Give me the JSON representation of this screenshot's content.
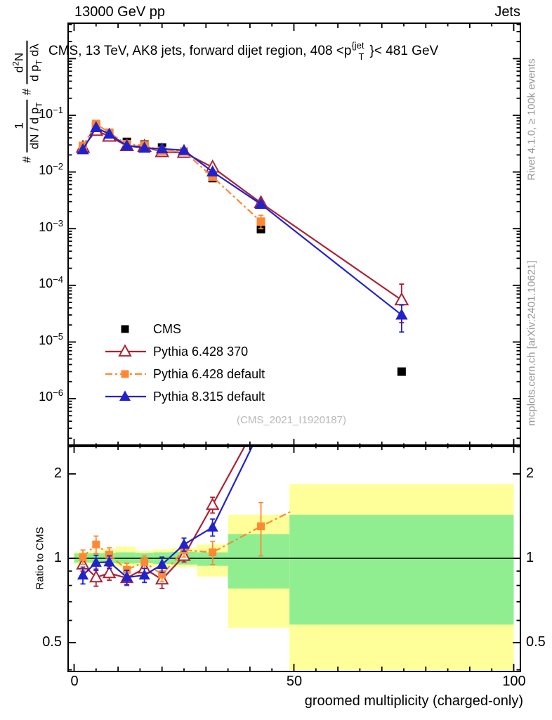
{
  "header": {
    "left": "13000 GeV pp",
    "right": "Jets"
  },
  "title": {
    "p1": "CMS, 13 TeV, AK8 jets, forward dijet region, 408 <p",
    "sup": "{jet",
    "sub": "T",
    "p2": "}< 481 GeV"
  },
  "ylabel": {
    "h1": "#",
    "n1": "1",
    "d1a": "dN / d p",
    "d1s": "T",
    "h2": "#",
    "n2a": "d",
    "n2s": "2",
    "n2b": "N",
    "d2a": "d p",
    "d2s": "T",
    "d2b": " dλ"
  },
  "ratio_ylabel": "Ratio to CMS",
  "xlabel": "groomed multiplicity (charged-only)",
  "watermark": "(CMS_2021_I1920187)",
  "right_margin": {
    "top": "Rivet 4.1.0, ≥ 100k events",
    "bottom": "mcplots.cern.ch [arXiv:2401.10621]"
  },
  "axes": {
    "main_yticks": [
      {
        "b": "10",
        "e": "−1"
      },
      {
        "b": "10",
        "e": "−2"
      },
      {
        "b": "10",
        "e": "−3"
      },
      {
        "b": "10",
        "e": "−4"
      },
      {
        "b": "10",
        "e": "−5"
      },
      {
        "b": "10",
        "e": "−6"
      }
    ],
    "ratio_yticks_left": [
      "2",
      "1",
      "0.5"
    ],
    "ratio_yticks_right": [
      "2",
      "1",
      "0.5"
    ],
    "xticks": [
      "0",
      "50",
      "100"
    ]
  },
  "legend": [
    {
      "label": "CMS",
      "color": "#000000",
      "marker": "sq",
      "line": "none"
    },
    {
      "label": "Pythia 6.428 370",
      "color": "#aa2233",
      "marker": "tri-open",
      "line": "solid"
    },
    {
      "label": "Pythia 6.428 default",
      "color": "#ff8833",
      "marker": "sq",
      "line": "dashdot"
    },
    {
      "label": "Pythia 8.315 default",
      "color": "#2222cc",
      "marker": "tri",
      "line": "solid"
    }
  ],
  "colors": {
    "red": "#aa2233",
    "orange": "#ff8833",
    "blue": "#2222cc",
    "band_yellow": "#ffff99",
    "band_green": "#90ee90"
  },
  "chart_data": {
    "type": "line",
    "title": "CMS, 13 TeV, AK8 jets, forward dijet region, 408 < pT^jet < 481 GeV",
    "xlabel": "groomed multiplicity (charged-only)",
    "x_range": [
      -1.36,
      101.5
    ],
    "x_ticks": {
      "minor_step": 5,
      "mid_step": 10,
      "major": [
        0,
        50,
        100
      ]
    },
    "main": {
      "ylog": true,
      "y_range": [
        1.45e-07,
        4.2
      ],
      "y_decades_labeled": [
        -1,
        -2,
        -3,
        -4,
        -5,
        -6
      ],
      "series": [
        {
          "name": "CMS",
          "color": "#000000",
          "marker": "sq",
          "line": "none",
          "x": [
            2,
            5,
            8,
            12,
            16,
            20,
            25,
            31.5,
            42.5,
            74.5
          ],
          "y": [
            0.0285,
            0.063,
            0.048,
            0.034,
            0.0305,
            0.027,
            0.0215,
            0.0078,
            0.00098,
            3e-06
          ],
          "ylo": null,
          "yhi": null
        },
        {
          "name": "Pythia 6.428 370",
          "color": "#aa2233",
          "marker": "tri-open",
          "line": "solid",
          "x": [
            2,
            5,
            8,
            12,
            16,
            20,
            25,
            31.5,
            42.5,
            74.5
          ],
          "y": [
            0.0271,
            0.0539,
            0.0425,
            0.0289,
            0.0281,
            0.0227,
            0.022,
            0.0121,
            0.00285,
            5.5e-05
          ],
          "ylo": [
            0.0252,
            0.0501,
            0.0395,
            0.0269,
            0.0261,
            0.0211,
            0.0205,
            0.0113,
            0.00265,
            2.2e-05
          ],
          "yhi": [
            0.029,
            0.0577,
            0.0455,
            0.0309,
            0.0301,
            0.0243,
            0.0235,
            0.0129,
            0.00305,
            0.000105
          ]
        },
        {
          "name": "Pythia 6.428 default",
          "color": "#ff8833",
          "marker": "sq",
          "line": "dashdot",
          "x": [
            2,
            5,
            8,
            12,
            16,
            20,
            25,
            31.5,
            42.5
          ],
          "y": [
            0.0288,
            0.0706,
            0.0494,
            0.0309,
            0.0296,
            0.0236,
            0.023,
            0.0082,
            0.00133
          ],
          "ylo": [
            0.0268,
            0.0657,
            0.0459,
            0.0287,
            0.0275,
            0.0219,
            0.0214,
            0.0076,
            0.001
          ],
          "yhi": [
            0.0308,
            0.0755,
            0.0529,
            0.0331,
            0.0317,
            0.0253,
            0.0246,
            0.0088,
            0.00172
          ]
        },
        {
          "name": "Pythia 8.315 default",
          "color": "#2222cc",
          "marker": "tri",
          "line": "solid",
          "x": [
            2,
            5,
            8,
            12,
            16,
            20,
            25,
            31.5,
            42.5,
            74.5
          ],
          "y": [
            0.0248,
            0.0608,
            0.0466,
            0.0291,
            0.0265,
            0.0257,
            0.0241,
            0.0101,
            0.0027,
            3e-05
          ],
          "ylo": [
            0.0231,
            0.0565,
            0.0433,
            0.0271,
            0.0246,
            0.0239,
            0.0224,
            0.0094,
            0.00251,
            1.5e-05
          ],
          "yhi": [
            0.0265,
            0.0651,
            0.0499,
            0.0311,
            0.0284,
            0.0275,
            0.0258,
            0.0108,
            0.00289,
            4.5e-05
          ]
        }
      ]
    },
    "ratio": {
      "ylog": true,
      "y_range": [
        0.394,
        2.54
      ],
      "y_ticks_major": [
        0.5,
        1,
        2
      ],
      "y_ticks_minor": [
        0.4,
        0.6,
        0.7,
        0.8,
        0.9,
        2.5
      ],
      "reference": 1,
      "bands": [
        {
          "x0": 0,
          "x1": 3.5,
          "green": [
            0.965,
            1.04
          ],
          "yellow": [
            0.95,
            1.055
          ]
        },
        {
          "x0": 3.5,
          "x1": 6.5,
          "green": [
            0.963,
            1.042
          ],
          "yellow": [
            0.945,
            1.06
          ]
        },
        {
          "x0": 6.5,
          "x1": 9.5,
          "green": [
            0.96,
            1.045
          ],
          "yellow": [
            0.94,
            1.08
          ]
        },
        {
          "x0": 9.5,
          "x1": 14,
          "green": [
            0.958,
            1.05
          ],
          "yellow": [
            0.93,
            1.1
          ]
        },
        {
          "x0": 14,
          "x1": 18,
          "green": [
            0.96,
            1.045
          ],
          "yellow": [
            0.94,
            1.065
          ]
        },
        {
          "x0": 18,
          "x1": 22,
          "green": [
            0.955,
            1.05
          ],
          "yellow": [
            0.935,
            1.075
          ]
        },
        {
          "x0": 22,
          "x1": 28,
          "green": [
            0.95,
            1.055
          ],
          "yellow": [
            0.93,
            1.09
          ]
        },
        {
          "x0": 28,
          "x1": 35,
          "green": [
            0.94,
            1.05
          ],
          "yellow": [
            0.86,
            1.12
          ]
        },
        {
          "x0": 35,
          "x1": 49,
          "green": [
            0.78,
            1.22
          ],
          "yellow": [
            0.565,
            1.43
          ]
        },
        {
          "x0": 49,
          "x1": 100,
          "green": [
            0.58,
            1.43
          ],
          "yellow": [
            0.4,
            1.84
          ]
        }
      ],
      "series": [
        {
          "name": "Pythia 6.428 370",
          "color": "#aa2233",
          "marker": "tri-open",
          "line": "solid",
          "x": [
            2,
            5,
            8,
            12,
            16,
            20,
            25,
            31.5,
            42.5
          ],
          "y": [
            0.95,
            0.855,
            0.885,
            0.85,
            0.92,
            0.84,
            1.02,
            1.55,
            3.2
          ],
          "err": [
            0.05,
            0.06,
            0.05,
            0.05,
            0.05,
            0.06,
            0.05,
            0.1,
            0
          ],
          "mk": [
            1,
            1,
            1,
            1,
            1,
            1,
            1,
            1,
            0
          ]
        },
        {
          "name": "Pythia 6.428 default",
          "color": "#ff8833",
          "marker": "sq",
          "line": "dashdot",
          "x": [
            2,
            5,
            8,
            12,
            16,
            20,
            25,
            31.5,
            42.5,
            49.4
          ],
          "y": [
            1.01,
            1.12,
            1.03,
            0.91,
            0.97,
            0.875,
            1.07,
            1.05,
            1.3,
            1.47
          ],
          "err": [
            0.06,
            0.08,
            0.06,
            0.05,
            0.05,
            0.05,
            0.06,
            0.1,
            0.28,
            0
          ],
          "mk": [
            1,
            1,
            1,
            1,
            1,
            1,
            1,
            1,
            1,
            0
          ]
        },
        {
          "name": "Pythia 8.315 default",
          "color": "#2222cc",
          "marker": "tri",
          "line": "solid",
          "x": [
            2,
            5,
            8,
            12,
            16,
            20,
            25,
            31.5,
            42.5
          ],
          "y": [
            0.87,
            0.965,
            0.97,
            0.855,
            0.87,
            0.95,
            1.12,
            1.29,
            2.9
          ],
          "err": [
            0.06,
            0.06,
            0.05,
            0.05,
            0.05,
            0.06,
            0.06,
            0.09,
            0
          ],
          "mk": [
            1,
            1,
            1,
            1,
            1,
            1,
            1,
            1,
            0
          ]
        }
      ]
    }
  }
}
